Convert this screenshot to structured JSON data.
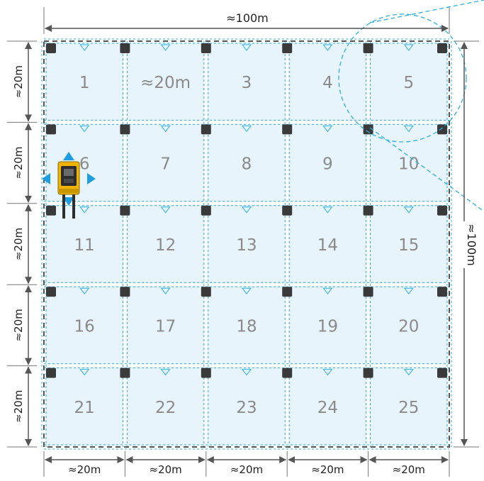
{
  "dimensions": {
    "top": "≈100m",
    "right": "≈100m",
    "cell_size": "≈20m",
    "left_rows": [
      "≈20m",
      "≈20m",
      "≈20m",
      "≈20m",
      "≈20m"
    ],
    "bottom_cols": [
      "≈20m",
      "≈20m",
      "≈20m",
      "≈20m",
      "≈20m"
    ]
  },
  "cells": [
    "1",
    "≈20m",
    "3",
    "4",
    "5",
    "6",
    "7",
    "8",
    "9",
    "10",
    "11",
    "12",
    "13",
    "14",
    "15",
    "16",
    "17",
    "18",
    "19",
    "20",
    "21",
    "22",
    "23",
    "24",
    "25"
  ],
  "grid": {
    "rows": 5,
    "cols": 5
  },
  "colors": {
    "cell_fill": "#e8f4fb",
    "dashed_blue": "#2bb0e0",
    "post": "#3a3a3a",
    "border_dashed": "#555555",
    "dimension": "#555555",
    "cell_text": "#8a8a8a",
    "robot_body": "#f0b400",
    "robot_arrow": "#1e9de0"
  },
  "icons": [
    "robot-icon",
    "direction-arrows",
    "camera-coverage-zone"
  ]
}
